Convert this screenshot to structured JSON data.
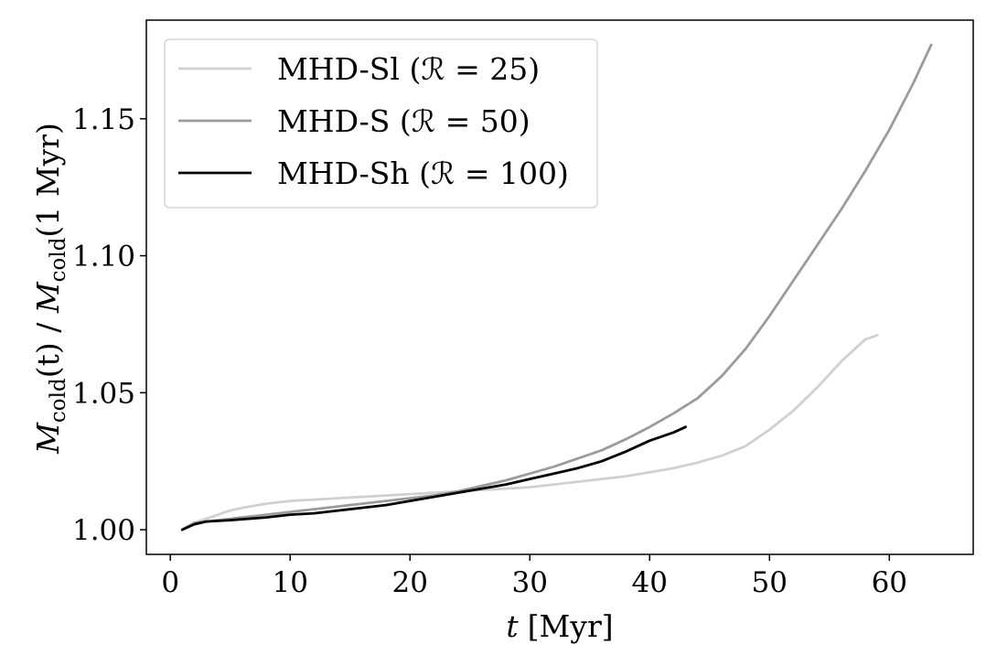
{
  "chart_data": {
    "type": "line",
    "xlabel_var": "t",
    "xlabel_unit": "[Myr]",
    "ylabel": {
      "num_var": "M",
      "num_sub": "cold",
      "num_arg": "(t)",
      "sep": " / ",
      "den_var": "M",
      "den_sub": "cold",
      "den_arg": "(1 Myr)"
    },
    "xlim": [
      -2,
      67
    ],
    "ylim": [
      0.991,
      1.186
    ],
    "xticks": [
      0,
      10,
      20,
      30,
      40,
      50,
      60
    ],
    "xtick_labels": [
      "0",
      "10",
      "20",
      "30",
      "40",
      "50",
      "60"
    ],
    "yticks": [
      1.0,
      1.05,
      1.1,
      1.15
    ],
    "ytick_labels": [
      "1.00",
      "1.05",
      "1.10",
      "1.15"
    ],
    "grid": false,
    "legend_position": "top-left",
    "series": [
      {
        "name": "MHD-Sl (ℛ = 25)",
        "color": "#d0d0d0",
        "x": [
          1,
          2,
          3,
          4,
          5,
          6,
          8,
          10,
          12,
          14,
          16,
          18,
          20,
          22,
          24,
          26,
          28,
          30,
          32,
          34,
          36,
          38,
          40,
          42,
          44,
          46,
          48,
          50,
          52,
          54,
          56,
          58,
          59
        ],
        "y": [
          1.0,
          1.0025,
          1.004,
          1.0055,
          1.007,
          1.008,
          1.0095,
          1.0105,
          1.011,
          1.0115,
          1.012,
          1.0125,
          1.013,
          1.0135,
          1.014,
          1.0145,
          1.015,
          1.0155,
          1.0165,
          1.0175,
          1.0185,
          1.0195,
          1.021,
          1.0225,
          1.0245,
          1.027,
          1.0305,
          1.0365,
          1.0435,
          1.052,
          1.0615,
          1.0695,
          1.071
        ]
      },
      {
        "name": "MHD-S (ℛ = 50)",
        "color": "#9b9b9b",
        "x": [
          1,
          2,
          3,
          5,
          8,
          10,
          12,
          14,
          16,
          18,
          20,
          22,
          24,
          26,
          28,
          30,
          32,
          34,
          36,
          38,
          40,
          42,
          44,
          46,
          48,
          50,
          52,
          54,
          56,
          58,
          60,
          62,
          63.5
        ],
        "y": [
          1.0,
          1.0025,
          1.003,
          1.004,
          1.0055,
          1.0065,
          1.0075,
          1.0085,
          1.0095,
          1.0105,
          1.0115,
          1.0125,
          1.014,
          1.016,
          1.018,
          1.0205,
          1.023,
          1.026,
          1.029,
          1.033,
          1.0375,
          1.0425,
          1.048,
          1.056,
          1.066,
          1.078,
          1.091,
          1.104,
          1.117,
          1.131,
          1.146,
          1.163,
          1.177
        ]
      },
      {
        "name": "MHD-Sh (ℛ = 100)",
        "color": "#000000",
        "x": [
          1,
          2,
          3,
          5,
          8,
          10,
          12,
          14,
          16,
          18,
          20,
          22,
          24,
          26,
          28,
          30,
          32,
          34,
          36,
          38,
          40,
          42,
          43
        ],
        "y": [
          1.0,
          1.002,
          1.003,
          1.0035,
          1.0045,
          1.0055,
          1.006,
          1.007,
          1.008,
          1.009,
          1.0105,
          1.012,
          1.0135,
          1.015,
          1.0165,
          1.0185,
          1.0205,
          1.0225,
          1.025,
          1.0285,
          1.0325,
          1.0355,
          1.0375
        ]
      }
    ]
  }
}
